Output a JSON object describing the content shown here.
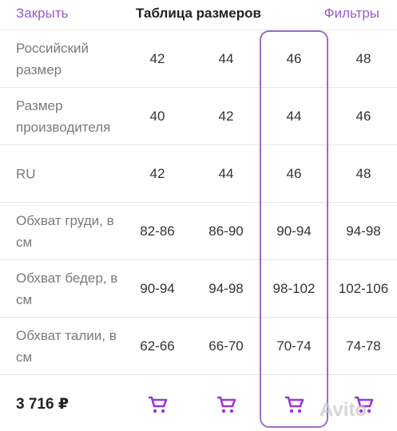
{
  "header": {
    "close": "Закрыть",
    "title": "Таблица размеров",
    "filters": "Фильтры"
  },
  "table": {
    "rows": [
      {
        "label": "Российский размер",
        "values": [
          "42",
          "44",
          "46",
          "48"
        ]
      },
      {
        "label": "Размер производителя",
        "values": [
          "40",
          "42",
          "44",
          "46"
        ]
      },
      {
        "label": "RU",
        "values": [
          "42",
          "44",
          "46",
          "48"
        ]
      },
      {
        "label": "Обхват груди, в см",
        "values": [
          "82-86",
          "86-90",
          "90-94",
          "94-98"
        ]
      },
      {
        "label": "Обхват бедер, в см",
        "values": [
          "90-94",
          "94-98",
          "98-102",
          "102-106"
        ]
      },
      {
        "label": "Обхват талии, в см",
        "values": [
          "62-66",
          "66-70",
          "70-74",
          "74-78"
        ]
      }
    ]
  },
  "footer": {
    "price": "3 716 ₽"
  },
  "watermark": "Avito"
}
